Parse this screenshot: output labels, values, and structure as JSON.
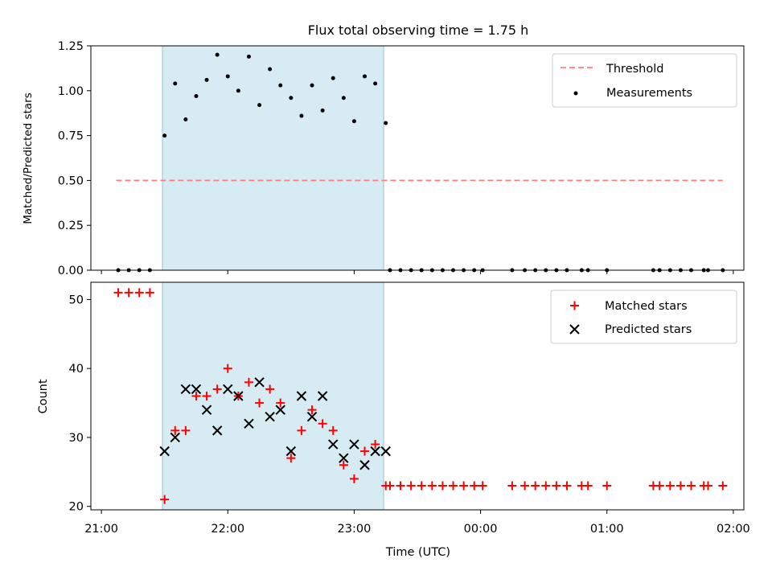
{
  "chart_data": [
    {
      "type": "scatter",
      "title": "Flux total observing time = 1.75 h",
      "ylabel": "Matched/Predicted stars",
      "ylim": [
        0,
        1.25
      ],
      "yticks": [
        "0.00",
        "0.25",
        "0.50",
        "0.75",
        "1.00",
        "1.25"
      ],
      "shaded_band": {
        "from": "21:29",
        "to": "23:14",
        "color": "#add8e6"
      },
      "threshold": {
        "name": "Threshold",
        "value": 0.5,
        "from": "21:07",
        "to": "01:55",
        "color": "#ff7f7f",
        "style": "dashed"
      },
      "series": [
        {
          "name": "Measurements",
          "marker": "dot",
          "color": "#000000",
          "points": [
            [
              "21:08",
              0
            ],
            [
              "21:13",
              0
            ],
            [
              "21:18",
              0
            ],
            [
              "21:23",
              0
            ],
            [
              "21:30",
              0.75
            ],
            [
              "21:35",
              1.04
            ],
            [
              "21:40",
              0.84
            ],
            [
              "21:45",
              0.97
            ],
            [
              "21:50",
              1.06
            ],
            [
              "21:55",
              1.2
            ],
            [
              "22:00",
              1.08
            ],
            [
              "22:05",
              1.0
            ],
            [
              "22:10",
              1.19
            ],
            [
              "22:15",
              0.92
            ],
            [
              "22:20",
              1.12
            ],
            [
              "22:25",
              1.03
            ],
            [
              "22:30",
              0.96
            ],
            [
              "22:35",
              0.86
            ],
            [
              "22:40",
              1.03
            ],
            [
              "22:45",
              0.89
            ],
            [
              "22:50",
              1.07
            ],
            [
              "22:55",
              0.96
            ],
            [
              "23:00",
              0.83
            ],
            [
              "23:05",
              1.08
            ],
            [
              "23:10",
              1.04
            ],
            [
              "23:15",
              0.82
            ],
            [
              "23:17",
              0
            ],
            [
              "23:22",
              0
            ],
            [
              "23:27",
              0
            ],
            [
              "23:32",
              0
            ],
            [
              "23:37",
              0
            ],
            [
              "23:42",
              0
            ],
            [
              "23:47",
              0
            ],
            [
              "23:52",
              0
            ],
            [
              "23:57",
              0
            ],
            [
              "00:01",
              0
            ],
            [
              "00:15",
              0
            ],
            [
              "00:21",
              0
            ],
            [
              "00:26",
              0
            ],
            [
              "00:31",
              0
            ],
            [
              "00:36",
              0
            ],
            [
              "00:41",
              0
            ],
            [
              "00:48",
              0
            ],
            [
              "00:51",
              0
            ],
            [
              "01:00",
              0
            ],
            [
              "01:22",
              0
            ],
            [
              "01:25",
              0
            ],
            [
              "01:30",
              0
            ],
            [
              "01:35",
              0
            ],
            [
              "01:40",
              0
            ],
            [
              "01:46",
              0
            ],
            [
              "01:48",
              0
            ],
            [
              "01:55",
              0
            ]
          ]
        }
      ],
      "legend": {
        "placement": "top-right",
        "entries": [
          "Threshold",
          "Measurements"
        ]
      }
    },
    {
      "type": "scatter",
      "xlabel": "Time (UTC)",
      "ylabel": "Count",
      "ylim": [
        19.5,
        52.5
      ],
      "yticks": [
        "20",
        "30",
        "40",
        "50"
      ],
      "xticks": [
        "21:00",
        "22:00",
        "23:00",
        "00:00",
        "01:00",
        "02:00"
      ],
      "shaded_band": {
        "from": "21:29",
        "to": "23:14",
        "color": "#add8e6"
      },
      "series": [
        {
          "name": "Matched stars",
          "marker": "plus",
          "color": "#ff0000",
          "points": [
            [
              "21:08",
              51
            ],
            [
              "21:13",
              51
            ],
            [
              "21:18",
              51
            ],
            [
              "21:23",
              51
            ],
            [
              "21:30",
              21
            ],
            [
              "21:35",
              31
            ],
            [
              "21:40",
              31
            ],
            [
              "21:45",
              36
            ],
            [
              "21:50",
              36
            ],
            [
              "21:55",
              37
            ],
            [
              "22:00",
              40
            ],
            [
              "22:05",
              36
            ],
            [
              "22:10",
              38
            ],
            [
              "22:15",
              35
            ],
            [
              "22:20",
              37
            ],
            [
              "22:25",
              35
            ],
            [
              "22:30",
              27
            ],
            [
              "22:35",
              31
            ],
            [
              "22:40",
              34
            ],
            [
              "22:45",
              32
            ],
            [
              "22:50",
              31
            ],
            [
              "22:55",
              26
            ],
            [
              "23:00",
              24
            ],
            [
              "23:05",
              28
            ],
            [
              "23:10",
              29
            ],
            [
              "23:15",
              23
            ],
            [
              "23:17",
              23
            ],
            [
              "23:22",
              23
            ],
            [
              "23:27",
              23
            ],
            [
              "23:32",
              23
            ],
            [
              "23:37",
              23
            ],
            [
              "23:42",
              23
            ],
            [
              "23:47",
              23
            ],
            [
              "23:52",
              23
            ],
            [
              "23:57",
              23
            ],
            [
              "00:01",
              23
            ],
            [
              "00:15",
              23
            ],
            [
              "00:21",
              23
            ],
            [
              "00:26",
              23
            ],
            [
              "00:31",
              23
            ],
            [
              "00:36",
              23
            ],
            [
              "00:41",
              23
            ],
            [
              "00:48",
              23
            ],
            [
              "00:51",
              23
            ],
            [
              "01:00",
              23
            ],
            [
              "01:22",
              23
            ],
            [
              "01:25",
              23
            ],
            [
              "01:30",
              23
            ],
            [
              "01:35",
              23
            ],
            [
              "01:40",
              23
            ],
            [
              "01:46",
              23
            ],
            [
              "01:48",
              23
            ],
            [
              "01:55",
              23
            ]
          ]
        },
        {
          "name": "Predicted stars",
          "marker": "x",
          "color": "#000000",
          "points": [
            [
              "21:30",
              28
            ],
            [
              "21:35",
              30
            ],
            [
              "21:40",
              37
            ],
            [
              "21:45",
              37
            ],
            [
              "21:50",
              34
            ],
            [
              "21:55",
              31
            ],
            [
              "22:00",
              37
            ],
            [
              "22:05",
              36
            ],
            [
              "22:10",
              32
            ],
            [
              "22:15",
              38
            ],
            [
              "22:20",
              33
            ],
            [
              "22:25",
              34
            ],
            [
              "22:30",
              28
            ],
            [
              "22:35",
              36
            ],
            [
              "22:40",
              33
            ],
            [
              "22:45",
              36
            ],
            [
              "22:50",
              29
            ],
            [
              "22:55",
              27
            ],
            [
              "23:00",
              29
            ],
            [
              "23:05",
              26
            ],
            [
              "23:10",
              28
            ],
            [
              "23:15",
              28
            ]
          ]
        }
      ],
      "legend": {
        "placement": "top-right",
        "entries": [
          "Matched stars",
          "Predicted stars"
        ]
      }
    }
  ]
}
